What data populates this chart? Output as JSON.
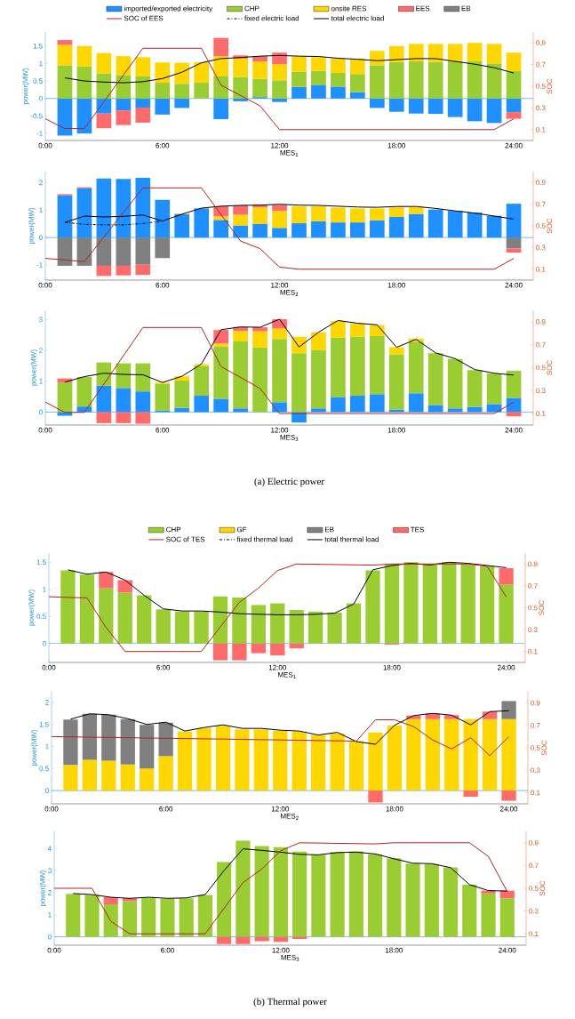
{
  "chart_data": [
    {
      "type": "bar",
      "stacked": true,
      "xlabel": "MES$_{1}$",
      "ylabel": "power(MW)",
      "y2label": "SOC",
      "legend": "top",
      "x": [
        1,
        2,
        3,
        4,
        5,
        6,
        7,
        8,
        9,
        10,
        11,
        12,
        13,
        14,
        15,
        16,
        17,
        18,
        19,
        20,
        21,
        22,
        23,
        24
      ],
      "xlim": [
        0,
        25
      ],
      "xticks": [
        {
          "value": 0,
          "label": "0:00"
        },
        {
          "value": 6,
          "label": "6:00"
        },
        {
          "value": 12,
          "label": "12:00"
        },
        {
          "value": 18,
          "label": "18:00"
        },
        {
          "value": 24,
          "label": "24:00"
        }
      ],
      "ylim": [
        -1.2,
        1.9
      ],
      "yticks": [
        -1,
        -0.5,
        0,
        0.5,
        1,
        1.5
      ],
      "y2lim": [
        0,
        1
      ],
      "y2ticks": [
        0.1,
        0.3,
        0.5,
        0.7,
        0.9
      ],
      "ref_lines": [
        {
          "axis": "y",
          "value": 0,
          "color": "#2a8fd4"
        }
      ],
      "series": [
        {
          "name": "imported/exported electricity",
          "type": "bar",
          "color": "#1e90ff",
          "values": [
            -1.06,
            -1.0,
            -0.43,
            -0.34,
            -0.26,
            -0.46,
            -0.27,
            null,
            -0.59,
            -0.08,
            0.04,
            -0.1,
            0.33,
            0.39,
            0.34,
            0.18,
            -0.27,
            -0.38,
            -0.43,
            -0.44,
            -0.53,
            -0.65,
            -0.7,
            -0.39
          ]
        },
        {
          "name": "CHP",
          "type": "bar",
          "color": "#9acd32",
          "values": [
            0.95,
            0.91,
            0.72,
            0.67,
            0.63,
            0.45,
            0.42,
            0.45,
            0.63,
            0.61,
            0.52,
            0.52,
            0.43,
            0.4,
            0.39,
            0.52,
            0.95,
            1.04,
            1.06,
            1.04,
            1.07,
            1.06,
            1.0,
            0.78
          ]
        },
        {
          "name": "onsite RES",
          "type": "bar",
          "color": "#ffd700",
          "values": [
            0.58,
            0.59,
            0.58,
            0.54,
            0.55,
            0.58,
            0.6,
            0.59,
            0.58,
            0.53,
            0.5,
            0.46,
            0.44,
            0.39,
            0.41,
            0.44,
            0.41,
            0.46,
            0.5,
            0.52,
            0.49,
            0.53,
            0.56,
            0.53
          ]
        },
        {
          "name": "EES",
          "type": "bar",
          "color": "#ff6a6a",
          "values": [
            0.14,
            null,
            -0.42,
            -0.42,
            -0.43,
            null,
            null,
            null,
            0.52,
            0.09,
            0.15,
            0.33,
            null,
            null,
            null,
            null,
            null,
            null,
            null,
            null,
            null,
            null,
            null,
            -0.19
          ]
        },
        {
          "name": "EB",
          "type": "bar",
          "color": "#808080",
          "values": [
            null,
            null,
            null,
            null,
            null,
            null,
            null,
            null,
            null,
            null,
            null,
            null,
            null,
            null,
            null,
            null,
            null,
            null,
            null,
            null,
            null,
            null,
            null,
            null
          ]
        },
        {
          "name": "SOC of EES",
          "type": "line",
          "axis": "y2",
          "color": "#b22222",
          "x": [
            0,
            1,
            2,
            5,
            8,
            9,
            11,
            12,
            23,
            24
          ],
          "values": [
            0.2,
            0.11,
            0.11,
            0.85,
            0.85,
            0.51,
            0.32,
            0.1,
            0.1,
            0.2
          ]
        },
        {
          "name": "fixed electric load",
          "type": "line",
          "line_style": "dashdot",
          "color": "#000000",
          "values": [
            null,
            null,
            null,
            null,
            null,
            null,
            null,
            null,
            null,
            null,
            null,
            null,
            null,
            null,
            null,
            null,
            null,
            null,
            null,
            null,
            null,
            null,
            null,
            null
          ]
        },
        {
          "name": "total electric load",
          "type": "line",
          "color": "#000000",
          "values": [
            0.59,
            0.5,
            0.47,
            0.45,
            0.48,
            0.57,
            0.75,
            1.02,
            1.14,
            1.17,
            1.21,
            1.23,
            1.21,
            1.2,
            1.15,
            1.12,
            1.08,
            1.11,
            1.14,
            1.14,
            1.06,
            0.98,
            0.88,
            0.73
          ]
        }
      ]
    },
    {
      "type": "bar",
      "stacked": true,
      "xlabel": "MES$_{2}$",
      "ylabel": "power(MW)",
      "y2label": "SOC",
      "x": [
        1,
        2,
        3,
        4,
        5,
        6,
        7,
        8,
        9,
        10,
        11,
        12,
        13,
        14,
        15,
        16,
        17,
        18,
        19,
        20,
        21,
        22,
        23,
        24
      ],
      "xlim": [
        0,
        25
      ],
      "xticks": [
        {
          "value": 0,
          "label": "0:00"
        },
        {
          "value": 6,
          "label": "6:00"
        },
        {
          "value": 12,
          "label": "12:00"
        },
        {
          "value": 18,
          "label": "18:00"
        },
        {
          "value": 24,
          "label": "24:00"
        }
      ],
      "ylim": [
        -1.55,
        2.4
      ],
      "yticks": [
        -1,
        0,
        1,
        2
      ],
      "y2lim": [
        0,
        1
      ],
      "y2ticks": [
        0.1,
        0.3,
        0.5,
        0.7,
        0.9
      ],
      "ref_lines": [
        {
          "axis": "y",
          "value": 0,
          "color": "#2a8fd4"
        }
      ],
      "series": [
        {
          "type": "bar",
          "color": "#1e90ff",
          "values": [
            1.54,
            1.79,
            2.15,
            2.13,
            2.17,
            1.37,
            0.85,
            1.06,
            0.64,
            0.44,
            0.5,
            0.35,
            0.52,
            0.59,
            0.55,
            0.55,
            0.63,
            0.75,
            0.86,
            1.02,
            0.97,
            0.91,
            0.79,
            1.23
          ]
        },
        {
          "type": "bar",
          "color": "#ffd700",
          "values": [
            null,
            null,
            null,
            null,
            null,
            null,
            0.03,
            null,
            0.13,
            0.39,
            0.6,
            0.62,
            0.62,
            0.55,
            0.54,
            0.51,
            0.43,
            0.35,
            0.25,
            null,
            null,
            null,
            null,
            null
          ]
        },
        {
          "type": "bar",
          "color": "#808080",
          "values": [
            -1.03,
            -1.03,
            -1.03,
            -1.03,
            -0.99,
            -0.75,
            null,
            null,
            null,
            null,
            null,
            null,
            null,
            null,
            null,
            null,
            null,
            null,
            null,
            null,
            null,
            null,
            null,
            -0.4
          ]
        },
        {
          "type": "bar",
          "color": "#ff6a6a",
          "values": [
            0.04,
            0.04,
            -0.37,
            -0.35,
            -0.37,
            null,
            null,
            null,
            0.37,
            0.34,
            0.08,
            0.22,
            null,
            null,
            null,
            null,
            null,
            null,
            null,
            null,
            null,
            null,
            null,
            -0.15
          ]
        },
        {
          "type": "line",
          "axis": "y2",
          "color": "#b22222",
          "x": [
            0,
            2,
            5,
            8,
            10,
            11,
            12,
            13,
            23,
            24
          ],
          "values": [
            0.2,
            0.17,
            0.85,
            0.85,
            0.36,
            0.29,
            0.12,
            0.1,
            0.1,
            0.2
          ]
        },
        {
          "type": "line",
          "line_style": "dashdot",
          "color": "#000000",
          "values": [
            0.55,
            0.48,
            0.46,
            0.46,
            0.51,
            0.6,
            null,
            null,
            null,
            null,
            null,
            null,
            null,
            null,
            null,
            null,
            null,
            null,
            null,
            null,
            null,
            null,
            null,
            null
          ]
        },
        {
          "type": "line",
          "color": "#000000",
          "values": [
            0.55,
            0.78,
            0.75,
            0.77,
            0.82,
            0.6,
            0.85,
            1.07,
            1.14,
            1.17,
            1.18,
            1.21,
            1.18,
            1.17,
            1.14,
            1.11,
            1.1,
            1.13,
            1.13,
            1.06,
            0.97,
            0.89,
            0.78,
            0.67
          ]
        }
      ]
    },
    {
      "type": "bar",
      "stacked": true,
      "xlabel": "MES$_{3}$",
      "ylabel": "power(MW)",
      "y2label": "SOC",
      "annotations": [
        "(a) Electric power"
      ],
      "x": [
        1,
        2,
        3,
        4,
        5,
        6,
        7,
        8,
        9,
        10,
        11,
        12,
        13,
        14,
        15,
        16,
        17,
        18,
        19,
        20,
        21,
        22,
        23,
        24
      ],
      "xlim": [
        0,
        25
      ],
      "xticks": [
        {
          "value": 0,
          "label": "0:00"
        },
        {
          "value": 6,
          "label": "6:00"
        },
        {
          "value": 12,
          "label": "12:00"
        },
        {
          "value": 18,
          "label": "18:00"
        },
        {
          "value": 24,
          "label": "24:00"
        }
      ],
      "ylim": [
        -0.42,
        3.3
      ],
      "yticks": [
        0,
        1,
        2,
        3
      ],
      "y2lim": [
        0,
        1
      ],
      "y2ticks": [
        0.1,
        0.3,
        0.5,
        0.7,
        0.9
      ],
      "ref_lines": [
        {
          "axis": "y",
          "value": 0,
          "color": "#2a8fd4"
        }
      ],
      "series": [
        {
          "type": "bar",
          "color": "#1e90ff",
          "values": [
            -0.12,
            0.18,
            0.86,
            0.78,
            0.67,
            0.05,
            0.14,
            0.53,
            0.43,
            0.12,
            null,
            0.32,
            -0.34,
            0.12,
            0.49,
            0.53,
            0.58,
            0.08,
            0.61,
            0.23,
            0.12,
            0.17,
            0.26,
            0.46
          ]
        },
        {
          "type": "bar",
          "color": "#9acd32",
          "values": [
            0.96,
            0.96,
            0.75,
            0.8,
            0.91,
            0.87,
            0.88,
            0.96,
            1.69,
            2.17,
            2.09,
            2.05,
            1.91,
            1.88,
            1.92,
            1.92,
            1.88,
            1.79,
            1.67,
            1.68,
            1.6,
            1.19,
            0.99,
            0.88
          ]
        },
        {
          "type": "bar",
          "color": "#ffd700",
          "values": [
            null,
            null,
            null,
            null,
            null,
            0.04,
            0.14,
            0.06,
            0.1,
            0.34,
            0.53,
            0.34,
            0.53,
            0.59,
            0.54,
            0.42,
            0.36,
            0.23,
            0.1,
            null,
            null,
            null,
            null,
            null
          ]
        },
        {
          "type": "bar",
          "color": "#ff6a6a",
          "values": [
            0.13,
            null,
            -0.36,
            -0.36,
            -0.38,
            null,
            null,
            null,
            0.44,
            0.13,
            0.13,
            0.3,
            null,
            null,
            null,
            null,
            null,
            null,
            null,
            null,
            null,
            null,
            null,
            -0.14
          ]
        },
        {
          "type": "line",
          "axis": "y2",
          "color": "#b22222",
          "x": [
            0,
            1,
            2,
            5,
            8,
            9,
            11,
            12,
            23,
            24
          ],
          "values": [
            0.2,
            0.11,
            0.11,
            0.85,
            0.85,
            0.51,
            0.32,
            0.1,
            0.1,
            0.2
          ]
        },
        {
          "type": "line",
          "color": "#000000",
          "values": [
            0.97,
            1.15,
            1.26,
            1.22,
            1.21,
            0.96,
            1.16,
            1.56,
            2.67,
            2.76,
            2.75,
            3.01,
            2.11,
            2.59,
            2.97,
            2.88,
            2.83,
            2.1,
            2.36,
            1.92,
            1.73,
            1.38,
            1.26,
            1.2
          ]
        }
      ]
    },
    {
      "type": "bar",
      "stacked": true,
      "xlabel": "MES$_{1}$",
      "ylabel": "power(MW)",
      "y2label": "SOC",
      "legend": "top",
      "x": [
        1,
        2,
        3,
        4,
        5,
        6,
        7,
        8,
        9,
        10,
        11,
        12,
        13,
        14,
        15,
        16,
        17,
        18,
        19,
        20,
        21,
        22,
        23,
        24
      ],
      "xlim": [
        0,
        25
      ],
      "xticks": [
        {
          "value": 0,
          "label": "0:00"
        },
        {
          "value": 6,
          "label": "6:00"
        },
        {
          "value": 12,
          "label": "12:00"
        },
        {
          "value": 18,
          "label": "18:00"
        },
        {
          "value": 24,
          "label": "24:00"
        }
      ],
      "ylim": [
        -0.35,
        1.67
      ],
      "yticks": [
        0,
        0.5,
        1,
        1.5
      ],
      "y2lim": [
        0,
        1
      ],
      "y2ticks": [
        0.1,
        0.3,
        0.5,
        0.7,
        0.9
      ],
      "ref_lines": [
        {
          "axis": "y",
          "value": 0,
          "color": "#2a8fd4"
        }
      ],
      "series": [
        {
          "name": "CHP",
          "type": "bar",
          "color": "#9acd32",
          "values": [
            1.35,
            1.27,
            1.02,
            0.94,
            0.89,
            0.63,
            0.59,
            0.59,
            0.87,
            0.85,
            0.71,
            0.74,
            0.62,
            0.59,
            0.57,
            0.74,
            1.35,
            1.46,
            1.5,
            1.46,
            1.5,
            1.46,
            1.43,
            1.09
          ]
        },
        {
          "name": "GF",
          "type": "bar",
          "color": "#ffd700",
          "values": [
            null,
            null,
            null,
            null,
            null,
            null,
            null,
            null,
            null,
            null,
            null,
            null,
            null,
            null,
            null,
            null,
            null,
            null,
            null,
            null,
            null,
            null,
            null,
            null
          ]
        },
        {
          "name": "EB",
          "type": "bar",
          "color": "#808080",
          "values": [
            null,
            null,
            null,
            null,
            null,
            null,
            null,
            null,
            null,
            null,
            null,
            null,
            null,
            null,
            null,
            null,
            null,
            null,
            null,
            null,
            null,
            null,
            null,
            null
          ]
        },
        {
          "name": "TES",
          "type": "bar",
          "color": "#ff6a6a",
          "values": [
            null,
            null,
            0.3,
            0.23,
            null,
            null,
            null,
            null,
            -0.31,
            -0.31,
            -0.18,
            -0.22,
            -0.09,
            null,
            null,
            null,
            null,
            -0.02,
            null,
            null,
            null,
            null,
            null,
            0.3
          ]
        },
        {
          "name": "SOC of TES",
          "type": "line",
          "axis": "y2",
          "color": "#b22222",
          "x": [
            0,
            2,
            3,
            4,
            8,
            10,
            11,
            12,
            13,
            17,
            18,
            22,
            23,
            24
          ],
          "values": [
            0.6,
            0.59,
            0.32,
            0.1,
            0.1,
            0.55,
            0.68,
            0.84,
            0.9,
            0.89,
            0.9,
            0.9,
            0.88,
            0.6
          ]
        },
        {
          "name": "fixed thermal load",
          "type": "line",
          "line_style": "dashdot",
          "color": "#000000",
          "values": [
            null,
            null,
            null,
            null,
            null,
            null,
            null,
            null,
            null,
            null,
            null,
            null,
            null,
            null,
            null,
            null,
            null,
            null,
            null,
            null,
            null,
            null,
            null,
            null
          ]
        },
        {
          "name": "total thermal load",
          "type": "line",
          "color": "#000000",
          "values": [
            1.36,
            1.28,
            1.32,
            1.17,
            0.89,
            0.64,
            0.6,
            0.6,
            0.58,
            0.55,
            0.54,
            0.53,
            0.53,
            0.54,
            0.56,
            0.73,
            1.36,
            1.44,
            1.48,
            1.45,
            1.5,
            1.48,
            1.44,
            1.4
          ]
        }
      ]
    },
    {
      "type": "bar",
      "stacked": true,
      "xlabel": "MES$_{2}$",
      "ylabel": "power(MW)",
      "y2label": "SOC",
      "x": [
        1,
        2,
        3,
        4,
        5,
        6,
        7,
        8,
        9,
        10,
        11,
        12,
        13,
        14,
        15,
        16,
        17,
        18,
        19,
        20,
        21,
        22,
        23,
        24
      ],
      "xlim": [
        0,
        25
      ],
      "xticks": [
        {
          "value": 0,
          "label": "0:00"
        },
        {
          "value": 6,
          "label": "6:00"
        },
        {
          "value": 12,
          "label": "12:00"
        },
        {
          "value": 18,
          "label": "18:00"
        },
        {
          "value": 24,
          "label": "24:00"
        }
      ],
      "ylim": [
        -0.3,
        2.24
      ],
      "yticks": [
        0,
        0.5,
        1,
        1.5,
        2
      ],
      "y2lim": [
        0,
        1
      ],
      "y2ticks": [
        0.1,
        0.3,
        0.5,
        0.7,
        0.9
      ],
      "ref_lines": [
        {
          "axis": "y",
          "value": 0,
          "color": "#2a8fd4"
        }
      ],
      "series": [
        {
          "type": "bar",
          "color": "#ffd700",
          "values": [
            0.58,
            0.7,
            0.68,
            0.59,
            0.5,
            0.78,
            1.34,
            1.42,
            1.47,
            1.39,
            1.39,
            1.36,
            1.34,
            1.26,
            1.3,
            1.12,
            1.32,
            1.48,
            1.62,
            1.62,
            1.62,
            1.62,
            1.62,
            1.62
          ]
        },
        {
          "type": "bar",
          "color": "#808080",
          "values": [
            1.03,
            1.04,
            1.04,
            1.03,
            0.99,
            0.76,
            null,
            null,
            null,
            null,
            null,
            null,
            null,
            null,
            null,
            null,
            null,
            null,
            null,
            null,
            null,
            null,
            null,
            0.41
          ]
        },
        {
          "type": "bar",
          "color": "#ff6a6a",
          "values": [
            null,
            null,
            null,
            null,
            null,
            null,
            null,
            null,
            null,
            null,
            null,
            null,
            null,
            null,
            null,
            null,
            -0.27,
            null,
            0.08,
            0.13,
            0.09,
            -0.14,
            0.17,
            -0.23
          ]
        },
        {
          "type": "line",
          "axis": "y2",
          "color": "#b22222",
          "x": [
            0,
            16,
            17,
            18,
            19,
            20,
            21,
            22,
            23,
            24
          ],
          "values": [
            0.6,
            0.56,
            0.75,
            0.75,
            0.69,
            0.57,
            0.49,
            0.59,
            0.43,
            0.6
          ]
        },
        {
          "type": "line",
          "color": "#000000",
          "values": [
            1.62,
            1.74,
            1.72,
            1.63,
            1.5,
            1.55,
            1.35,
            1.43,
            1.49,
            1.41,
            1.41,
            1.37,
            1.35,
            1.26,
            1.32,
            1.11,
            1.05,
            1.48,
            1.7,
            1.75,
            1.71,
            1.49,
            1.79,
            1.81
          ]
        }
      ]
    },
    {
      "type": "bar",
      "stacked": true,
      "xlabel": "MES$_{3}$",
      "ylabel": "power(MW)",
      "y2label": "SOC",
      "annotations": [
        "(b) Thermal power"
      ],
      "x": [
        1,
        2,
        3,
        4,
        5,
        6,
        7,
        8,
        9,
        10,
        11,
        12,
        13,
        14,
        15,
        16,
        17,
        18,
        19,
        20,
        21,
        22,
        23,
        24
      ],
      "xlim": [
        0,
        25
      ],
      "xticks": [
        {
          "value": 0,
          "label": "0:00"
        },
        {
          "value": 6,
          "label": "6:00"
        },
        {
          "value": 12,
          "label": "12:00"
        },
        {
          "value": 18,
          "label": "18:00"
        },
        {
          "value": 24,
          "label": "24:00"
        }
      ],
      "ylim": [
        -0.38,
        4.77
      ],
      "yticks": [
        0,
        1,
        2,
        3,
        4
      ],
      "y2lim": [
        0,
        1
      ],
      "y2ticks": [
        0.1,
        0.3,
        0.5,
        0.7,
        0.9
      ],
      "ref_lines": [
        {
          "axis": "y",
          "value": 0,
          "color": "#2a8fd4"
        }
      ],
      "series": [
        {
          "type": "bar",
          "color": "#9acd32",
          "values": [
            1.94,
            1.89,
            1.47,
            1.61,
            1.77,
            1.72,
            1.74,
            1.89,
            3.38,
            4.35,
            4.11,
            4.06,
            3.85,
            3.71,
            3.83,
            3.86,
            3.73,
            3.55,
            3.31,
            3.29,
            3.14,
            2.36,
            1.96,
            1.74
          ]
        },
        {
          "type": "bar",
          "color": "#ff6a6a",
          "values": [
            null,
            null,
            0.32,
            0.13,
            null,
            null,
            null,
            null,
            -0.33,
            -0.33,
            -0.2,
            -0.23,
            -0.1,
            null,
            null,
            null,
            null,
            null,
            null,
            null,
            null,
            null,
            0.13,
            0.35
          ]
        },
        {
          "type": "line",
          "axis": "y2",
          "color": "#b22222",
          "x": [
            0,
            2,
            3,
            4,
            8,
            10,
            11,
            12,
            13,
            17,
            18,
            22,
            23,
            24
          ],
          "values": [
            0.5,
            0.5,
            0.21,
            0.1,
            0.1,
            0.55,
            0.67,
            0.83,
            0.9,
            0.89,
            0.9,
            0.9,
            0.78,
            0.47
          ]
        },
        {
          "type": "line",
          "color": "#000000",
          "values": [
            1.96,
            1.91,
            1.79,
            1.74,
            1.79,
            1.74,
            1.76,
            1.91,
            3.0,
            3.98,
            3.91,
            3.83,
            3.73,
            3.71,
            3.81,
            3.83,
            3.75,
            3.53,
            3.33,
            3.31,
            3.13,
            2.36,
            2.09,
            2.07
          ]
        }
      ]
    }
  ]
}
